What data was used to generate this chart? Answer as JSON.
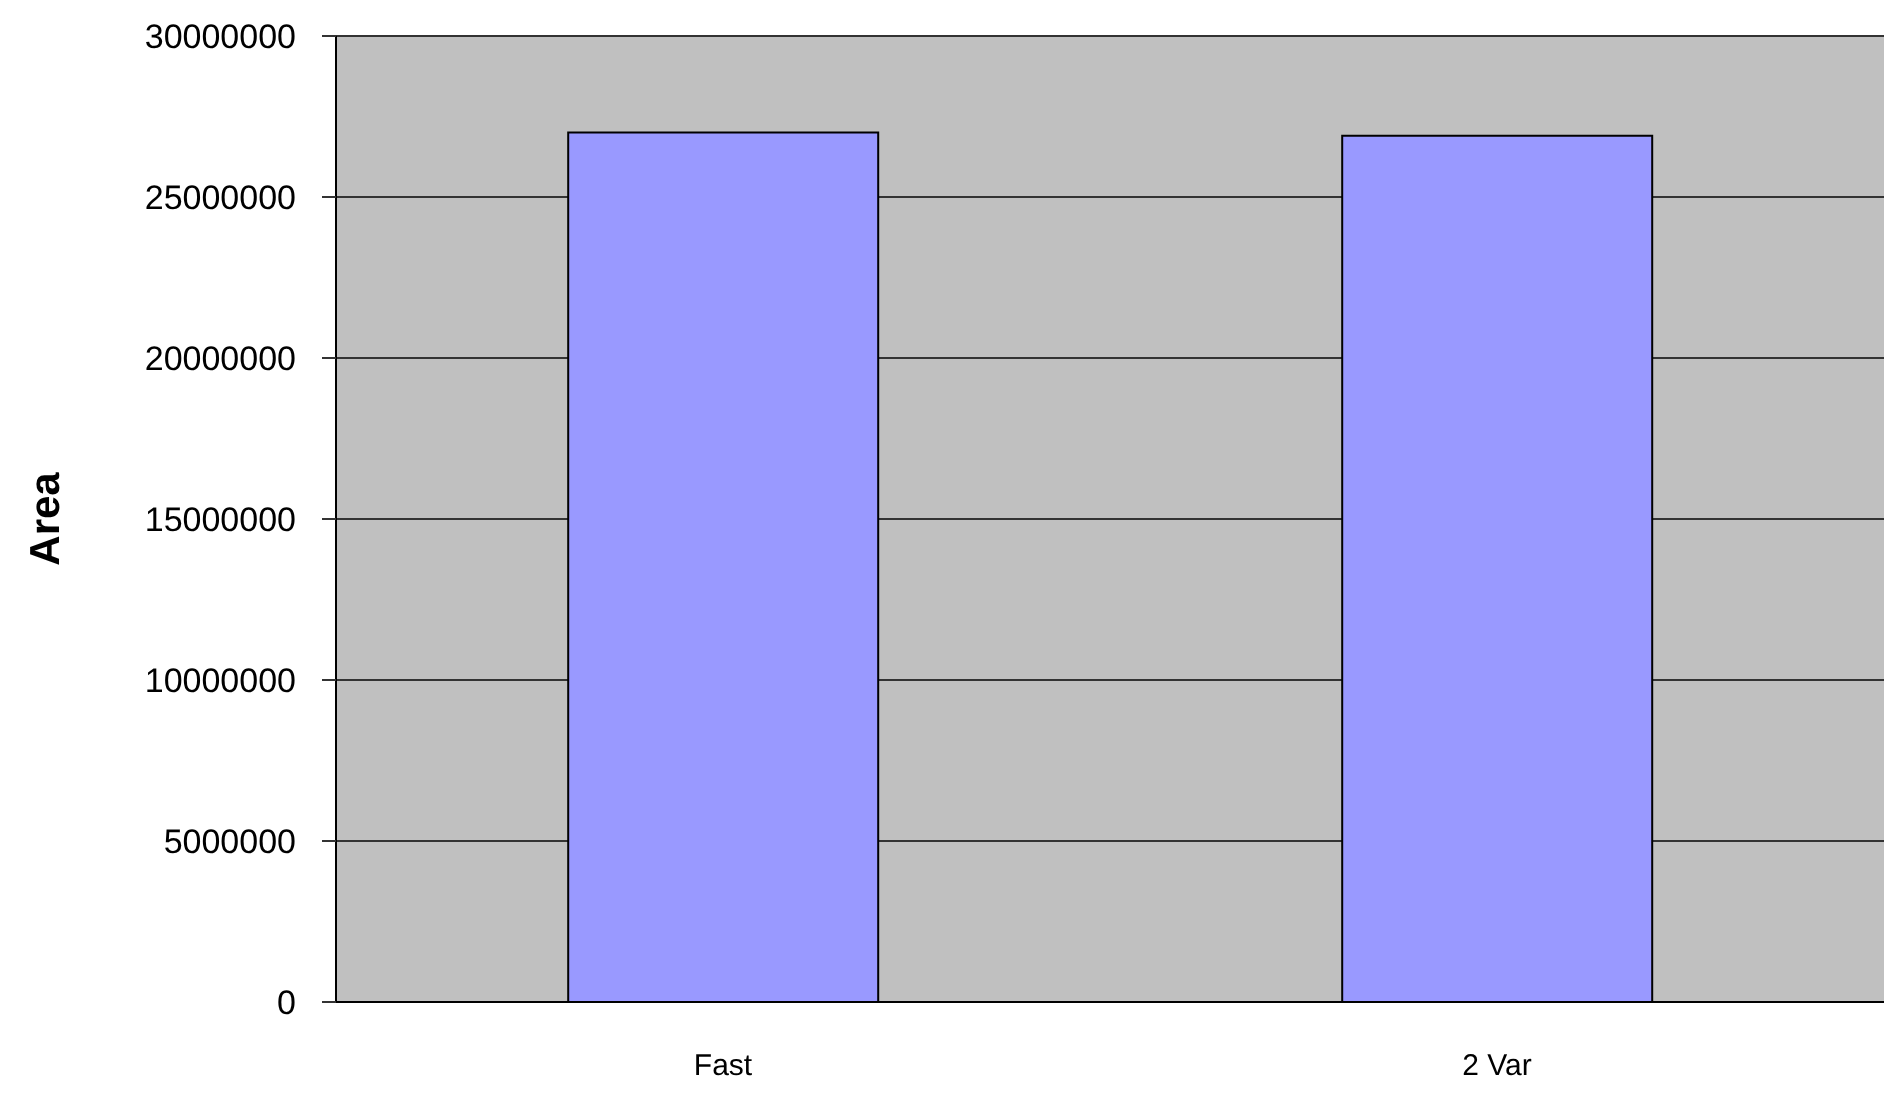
{
  "chart_data": {
    "type": "bar",
    "ylabel": "Area",
    "categories": [
      "Fast",
      "2 Var"
    ],
    "values": [
      27000000,
      26900000
    ],
    "color": "#9999ff",
    "ylim": [
      0,
      30000000
    ],
    "yticks": [
      0,
      5000000,
      10000000,
      15000000,
      20000000,
      25000000,
      30000000
    ],
    "grid": "y"
  }
}
